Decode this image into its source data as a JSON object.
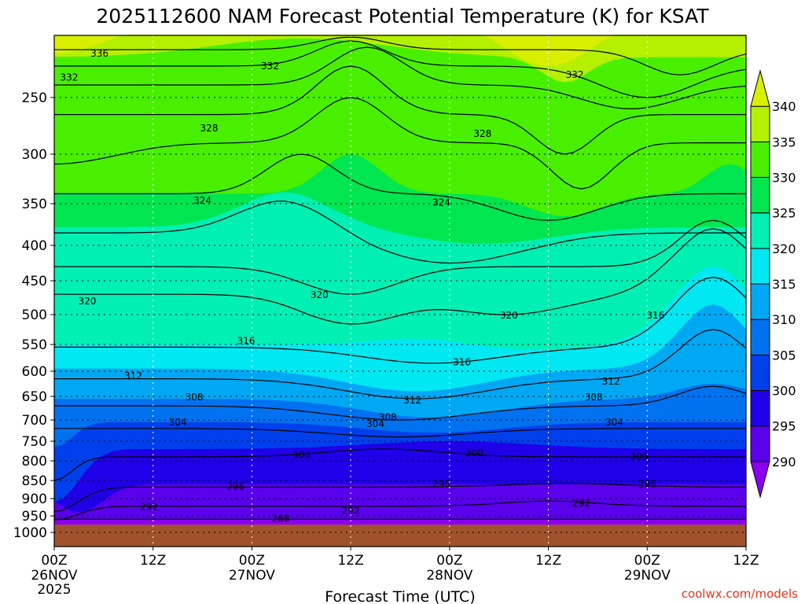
{
  "chart_data": {
    "type": "heatmap",
    "title": "2025112600 NAM Forecast Potential Temperature (K) for KSAT",
    "xlabel": "Forecast Time (UTC)",
    "ylabel": "",
    "x_ticks": [
      {
        "hour": 0,
        "label": "00Z",
        "date": "26NOV",
        "year": "2025"
      },
      {
        "hour": 12,
        "label": "12Z",
        "date": "",
        "year": ""
      },
      {
        "hour": 24,
        "label": "00Z",
        "date": "27NOV",
        "year": ""
      },
      {
        "hour": 36,
        "label": "12Z",
        "date": "",
        "year": ""
      },
      {
        "hour": 48,
        "label": "00Z",
        "date": "28NOV",
        "year": ""
      },
      {
        "hour": 60,
        "label": "12Z",
        "date": "",
        "year": ""
      },
      {
        "hour": 72,
        "label": "00Z",
        "date": "29NOV",
        "year": ""
      },
      {
        "hour": 84,
        "label": "12Z",
        "date": "",
        "year": ""
      }
    ],
    "y_ticks": [
      250,
      300,
      350,
      400,
      450,
      500,
      550,
      600,
      650,
      700,
      750,
      800,
      850,
      900,
      950,
      1000
    ],
    "xlim": [
      0,
      84
    ],
    "ylim": [
      1000,
      200
    ],
    "colorbar": {
      "levels": [
        290,
        295,
        300,
        305,
        310,
        315,
        320,
        325,
        330,
        335,
        340
      ],
      "colors": [
        "#8c00f0",
        "#5a00ec",
        "#2000e8",
        "#0040ec",
        "#0072f0",
        "#00a8f4",
        "#00e8f2",
        "#00f0b4",
        "#00e650",
        "#48f000",
        "#b4f000",
        "#d8f000"
      ]
    },
    "contour_labels": [
      {
        "value": "336",
        "hour": 5.5,
        "p": 215
      },
      {
        "value": "332",
        "hour": 1.8,
        "p": 234
      },
      {
        "value": "332",
        "hour": 26.2,
        "p": 225
      },
      {
        "value": "332",
        "hour": 63.2,
        "p": 232
      },
      {
        "value": "328",
        "hour": 18.8,
        "p": 277
      },
      {
        "value": "328",
        "hour": 52,
        "p": 282
      },
      {
        "value": "324",
        "hour": 18,
        "p": 347
      },
      {
        "value": "324",
        "hour": 47,
        "p": 349
      },
      {
        "value": "320",
        "hour": 4,
        "p": 480
      },
      {
        "value": "320",
        "hour": 32.2,
        "p": 471
      },
      {
        "value": "320",
        "hour": 55.2,
        "p": 501
      },
      {
        "value": "316",
        "hour": 23.3,
        "p": 544
      },
      {
        "value": "316",
        "hour": 49.5,
        "p": 583
      },
      {
        "value": "316",
        "hour": 73,
        "p": 501
      },
      {
        "value": "312",
        "hour": 9.6,
        "p": 609
      },
      {
        "value": "312",
        "hour": 43.5,
        "p": 658
      },
      {
        "value": "312",
        "hour": 67.6,
        "p": 620
      },
      {
        "value": "308",
        "hour": 17,
        "p": 652
      },
      {
        "value": "308",
        "hour": 40.5,
        "p": 694
      },
      {
        "value": "308",
        "hour": 65.5,
        "p": 652
      },
      {
        "value": "304",
        "hour": 15,
        "p": 706
      },
      {
        "value": "304",
        "hour": 39,
        "p": 709
      },
      {
        "value": "304",
        "hour": 68,
        "p": 706
      },
      {
        "value": "300",
        "hour": 30,
        "p": 785
      },
      {
        "value": "300",
        "hour": 51,
        "p": 780
      },
      {
        "value": "300",
        "hour": 71,
        "p": 789
      },
      {
        "value": "296",
        "hour": 22,
        "p": 866
      },
      {
        "value": "296",
        "hour": 47,
        "p": 860
      },
      {
        "value": "296",
        "hour": 72,
        "p": 860
      },
      {
        "value": "292",
        "hour": 11.5,
        "p": 924
      },
      {
        "value": "292",
        "hour": 36,
        "p": 935
      },
      {
        "value": "292",
        "hour": 64,
        "p": 914
      },
      {
        "value": "288",
        "hour": 27.5,
        "p": 958
      }
    ]
  },
  "footer": {
    "credit": "coolwx.com/models"
  }
}
